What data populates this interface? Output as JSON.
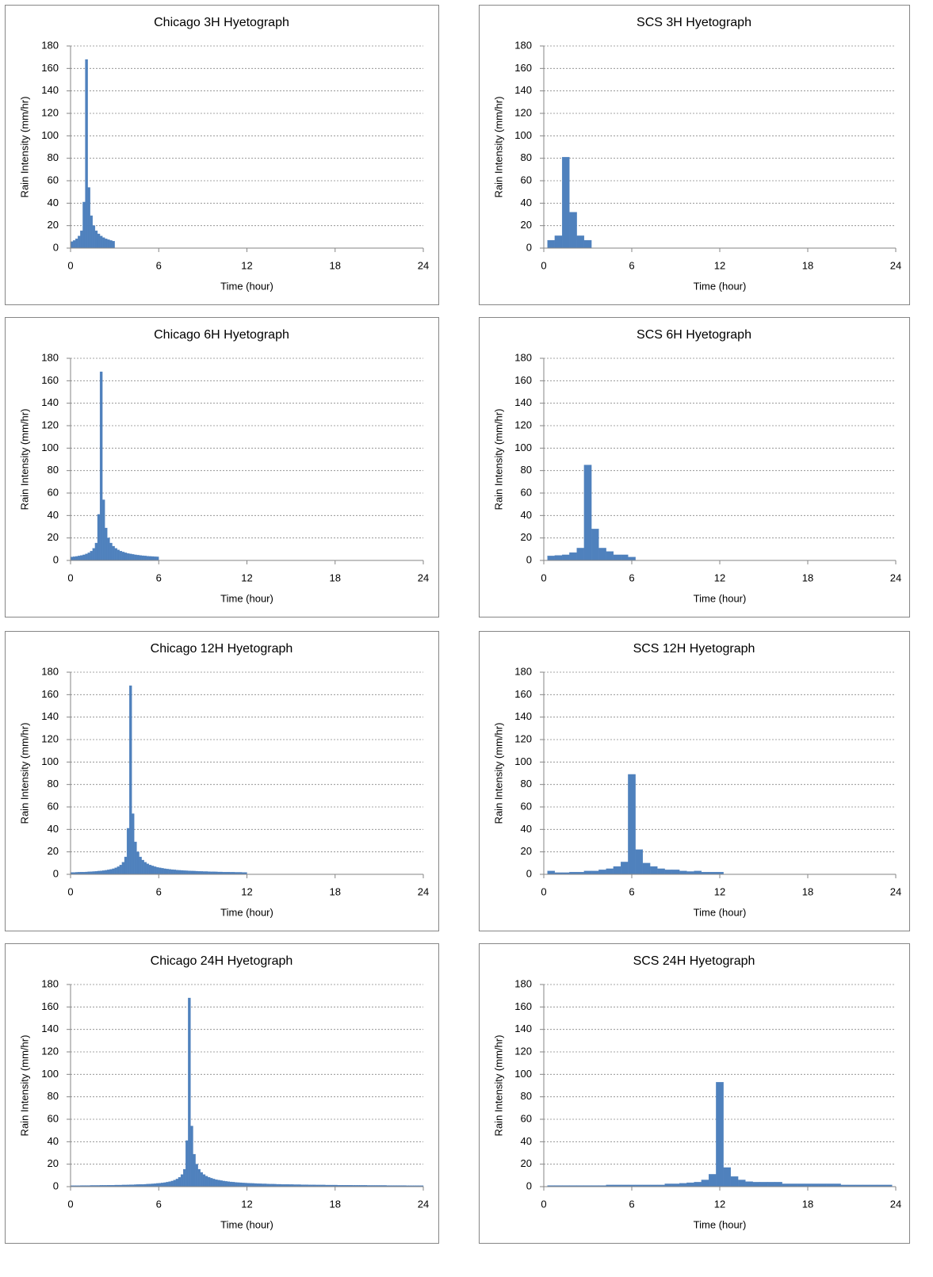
{
  "chart_data": [
    {
      "type": "histogram",
      "title": "Chicago 3H Hyetograph",
      "xlabel": "Time (hour)",
      "ylabel": "Rain Intensity (mm/hr)",
      "color": "#4f81bd",
      "grid": true,
      "xlim": [
        0,
        24
      ],
      "xticks": [
        0,
        6,
        12,
        18,
        24
      ],
      "ylim": [
        0,
        180
      ],
      "yticks": [
        0,
        20,
        40,
        60,
        80,
        100,
        120,
        140,
        160,
        180
      ],
      "bins": [
        0,
        0.167,
        0.333,
        0.5,
        0.667,
        0.833,
        1,
        1.167,
        1.333,
        1.5,
        1.667,
        1.833,
        2,
        2.167,
        2.333,
        2.5,
        2.667,
        2.833,
        3
      ],
      "values": [
        5.8,
        6.8,
        8.3,
        10.8,
        15.5,
        41,
        168,
        54,
        28.9,
        20.1,
        15.5,
        12.7,
        10.8,
        9.4,
        8.3,
        7.5,
        6.8,
        6.2
      ]
    },
    {
      "type": "histogram",
      "title": "SCS 3H Hyetograph",
      "xlabel": "Time (hour)",
      "ylabel": "Rain Intensity (mm/hr)",
      "color": "#4f81bd",
      "grid": true,
      "xlim": [
        0,
        24
      ],
      "xticks": [
        0,
        6,
        12,
        18,
        24
      ],
      "ylim": [
        0,
        180
      ],
      "yticks": [
        0,
        20,
        40,
        60,
        80,
        100,
        120,
        140,
        160,
        180
      ],
      "bins": [
        0.25,
        0.75,
        1.25,
        1.75,
        2.25,
        2.75,
        3.25
      ],
      "values": [
        7,
        11,
        81,
        32,
        11,
        7
      ]
    },
    {
      "type": "histogram",
      "title": "Chicago 6H Hyetograph",
      "xlabel": "Time (hour)",
      "ylabel": "Rain Intensity (mm/hr)",
      "color": "#4f81bd",
      "grid": true,
      "xlim": [
        0,
        24
      ],
      "xticks": [
        0,
        6,
        12,
        18,
        24
      ],
      "ylim": [
        0,
        180
      ],
      "yticks": [
        0,
        20,
        40,
        60,
        80,
        100,
        120,
        140,
        160,
        180
      ],
      "bins": [
        0,
        0.167,
        0.333,
        0.5,
        0.667,
        0.833,
        1,
        1.167,
        1.333,
        1.5,
        1.667,
        1.833,
        2,
        2.167,
        2.333,
        2.5,
        2.667,
        2.833,
        3,
        3.167,
        3.333,
        3.5,
        3.667,
        3.833,
        4,
        4.167,
        4.333,
        4.5,
        4.667,
        4.833,
        5,
        5.167,
        5.333,
        5.5,
        5.667,
        5.833,
        6
      ],
      "values": [
        3.1,
        3.3,
        3.6,
        4.0,
        4.5,
        5.0,
        5.8,
        6.8,
        8.3,
        10.8,
        15.5,
        41,
        168,
        54,
        28.9,
        20.1,
        15.5,
        12.7,
        10.8,
        9.4,
        8.3,
        7.5,
        6.8,
        6.2,
        5.8,
        5.4,
        5.0,
        4.7,
        4.5,
        4.2,
        4.0,
        3.8,
        3.6,
        3.5,
        3.3,
        3.2
      ]
    },
    {
      "type": "histogram",
      "title": "SCS 6H Hyetograph",
      "xlabel": "Time (hour)",
      "ylabel": "Rain Intensity (mm/hr)",
      "color": "#4f81bd",
      "grid": true,
      "xlim": [
        0,
        24
      ],
      "xticks": [
        0,
        6,
        12,
        18,
        24
      ],
      "ylim": [
        0,
        180
      ],
      "yticks": [
        0,
        20,
        40,
        60,
        80,
        100,
        120,
        140,
        160,
        180
      ],
      "bins": [
        0.25,
        0.75,
        1.25,
        1.75,
        2.25,
        2.75,
        3.25,
        3.75,
        4.25,
        4.75,
        5.25,
        5.75,
        6.25
      ],
      "values": [
        4,
        4.5,
        5,
        7,
        11,
        85,
        28,
        11,
        8,
        5,
        5,
        3
      ]
    },
    {
      "type": "histogram",
      "title": "Chicago 12H Hyetograph",
      "xlabel": "Time (hour)",
      "ylabel": "Rain Intensity (mm/hr)",
      "color": "#4f81bd",
      "grid": true,
      "xlim": [
        0,
        24
      ],
      "xticks": [
        0,
        6,
        12,
        18,
        24
      ],
      "ylim": [
        0,
        180
      ],
      "yticks": [
        0,
        20,
        40,
        60,
        80,
        100,
        120,
        140,
        160,
        180
      ],
      "bins": [
        0,
        0.167,
        0.333,
        0.5,
        0.667,
        0.833,
        1,
        1.167,
        1.333,
        1.5,
        1.667,
        1.833,
        2,
        2.167,
        2.333,
        2.5,
        2.667,
        2.833,
        3,
        3.167,
        3.333,
        3.5,
        3.667,
        3.833,
        4,
        4.167,
        4.333,
        4.5,
        4.667,
        4.833,
        5,
        5.167,
        5.333,
        5.5,
        5.667,
        5.833,
        6,
        6.167,
        6.333,
        6.5,
        6.667,
        6.833,
        7,
        7.167,
        7.333,
        7.5,
        7.667,
        7.833,
        8,
        8.167,
        8.333,
        8.5,
        8.667,
        8.833,
        9,
        9.167,
        9.333,
        9.5,
        9.667,
        9.833,
        10,
        10.167,
        10.333,
        10.5,
        10.667,
        10.833,
        11,
        11.167,
        11.333,
        11.5,
        11.667,
        11.833,
        12
      ],
      "values": [
        1.7,
        1.7,
        1.8,
        1.9,
        2.0,
        2.0,
        2.1,
        2.3,
        2.4,
        2.5,
        2.7,
        2.9,
        3.1,
        3.3,
        3.6,
        4.0,
        4.5,
        5.0,
        5.8,
        6.8,
        8.3,
        10.8,
        15.5,
        41,
        168,
        54,
        28.9,
        20.1,
        15.5,
        12.7,
        10.8,
        9.4,
        8.3,
        7.5,
        6.8,
        6.2,
        5.8,
        5.4,
        5.0,
        4.7,
        4.5,
        4.2,
        4.0,
        3.8,
        3.6,
        3.5,
        3.3,
        3.2,
        3.1,
        3.0,
        2.9,
        2.8,
        2.7,
        2.6,
        2.5,
        2.5,
        2.4,
        2.3,
        2.3,
        2.2,
        2.1,
        2.1,
        2.0,
        2.0,
        2.0,
        1.9,
        1.9,
        1.8,
        1.8,
        1.8,
        1.7,
        1.7
      ]
    },
    {
      "type": "histogram",
      "title": "SCS 12H Hyetograph",
      "xlabel": "Time (hour)",
      "ylabel": "Rain Intensity (mm/hr)",
      "color": "#4f81bd",
      "grid": true,
      "xlim": [
        0,
        24
      ],
      "xticks": [
        0,
        6,
        12,
        18,
        24
      ],
      "ylim": [
        0,
        180
      ],
      "yticks": [
        0,
        20,
        40,
        60,
        80,
        100,
        120,
        140,
        160,
        180
      ],
      "bins": [
        0.25,
        0.75,
        1.25,
        1.75,
        2.25,
        2.75,
        3.25,
        3.75,
        4.25,
        4.75,
        5.25,
        5.75,
        6.25,
        6.75,
        7.25,
        7.75,
        8.25,
        8.75,
        9.25,
        9.75,
        10.25,
        10.75,
        11.25,
        11.75,
        12.25
      ],
      "values": [
        3,
        1.5,
        1.5,
        2,
        2,
        3,
        3,
        4,
        5,
        7,
        11,
        89,
        22,
        10,
        7,
        5,
        4,
        4,
        3,
        2.5,
        3,
        2,
        2,
        2
      ]
    },
    {
      "type": "histogram",
      "title": "Chicago 24H Hyetograph",
      "xlabel": "Time (hour)",
      "ylabel": "Rain Intensity (mm/hr)",
      "color": "#4f81bd",
      "grid": true,
      "xlim": [
        0,
        24
      ],
      "xticks": [
        0,
        6,
        12,
        18,
        24
      ],
      "ylim": [
        0,
        180
      ],
      "yticks": [
        0,
        20,
        40,
        60,
        80,
        100,
        120,
        140,
        160,
        180
      ],
      "bins": [
        0,
        0.167,
        0.333,
        0.5,
        0.667,
        0.833,
        1,
        1.167,
        1.333,
        1.5,
        1.667,
        1.833,
        2,
        2.167,
        2.333,
        2.5,
        2.667,
        2.833,
        3,
        3.167,
        3.333,
        3.5,
        3.667,
        3.833,
        4,
        4.167,
        4.333,
        4.5,
        4.667,
        4.833,
        5,
        5.167,
        5.333,
        5.5,
        5.667,
        5.833,
        6,
        6.167,
        6.333,
        6.5,
        6.667,
        6.833,
        7,
        7.167,
        7.333,
        7.5,
        7.667,
        7.833,
        8,
        8.167,
        8.333,
        8.5,
        8.667,
        8.833,
        9,
        9.167,
        9.333,
        9.5,
        9.667,
        9.833,
        10,
        10.167,
        10.333,
        10.5,
        10.667,
        10.833,
        11,
        11.167,
        11.333,
        11.5,
        11.667,
        11.833,
        12,
        12.167,
        12.333,
        12.5,
        12.667,
        12.833,
        13,
        13.167,
        13.333,
        13.5,
        13.667,
        13.833,
        14,
        14.167,
        14.333,
        14.5,
        14.667,
        14.833,
        15,
        15.167,
        15.333,
        15.5,
        15.667,
        15.833,
        16,
        16.167,
        16.333,
        16.5,
        16.667,
        16.833,
        17,
        17.167,
        17.333,
        17.5,
        17.667,
        17.833,
        18,
        18.167,
        18.333,
        18.5,
        18.667,
        18.833,
        19,
        19.167,
        19.333,
        19.5,
        19.667,
        19.833,
        20,
        20.167,
        20.333,
        20.5,
        20.667,
        20.833,
        21,
        21.167,
        21.333,
        21.5,
        21.667,
        21.833,
        22,
        22.167,
        22.333,
        22.5,
        22.667,
        22.833,
        23,
        23.167,
        23.333,
        23.5,
        23.667,
        23.833,
        24
      ],
      "values": [
        0.9,
        0.9,
        0.9,
        0.9,
        1.0,
        1.0,
        1.0,
        1.0,
        1.1,
        1.1,
        1.1,
        1.1,
        1.2,
        1.2,
        1.2,
        1.3,
        1.3,
        1.3,
        1.4,
        1.4,
        1.4,
        1.5,
        1.5,
        1.6,
        1.7,
        1.7,
        1.8,
        1.9,
        2.0,
        2.0,
        2.1,
        2.3,
        2.4,
        2.5,
        2.7,
        2.9,
        3.1,
        3.3,
        3.6,
        4.0,
        4.5,
        5.0,
        5.8,
        6.8,
        8.3,
        10.8,
        15.5,
        41,
        168,
        54,
        28.9,
        20.1,
        15.5,
        12.7,
        10.8,
        9.4,
        8.3,
        7.5,
        6.8,
        6.2,
        5.8,
        5.4,
        5.0,
        4.7,
        4.5,
        4.2,
        4.0,
        3.8,
        3.6,
        3.5,
        3.3,
        3.2,
        3.1,
        3.0,
        2.9,
        2.8,
        2.7,
        2.6,
        2.5,
        2.5,
        2.4,
        2.3,
        2.3,
        2.2,
        2.1,
        2.1,
        2.0,
        2.0,
        2.0,
        1.9,
        1.9,
        1.8,
        1.8,
        1.8,
        1.7,
        1.7,
        1.7,
        1.6,
        1.6,
        1.6,
        1.5,
        1.5,
        1.5,
        1.5,
        1.4,
        1.4,
        1.4,
        1.4,
        1.4,
        1.3,
        1.3,
        1.3,
        1.3,
        1.3,
        1.3,
        1.2,
        1.2,
        1.2,
        1.2,
        1.2,
        1.2,
        1.1,
        1.1,
        1.1,
        1.1,
        1.1,
        1.1,
        1.1,
        1.1,
        1.0,
        1.0,
        1.0,
        1.0,
        1.0,
        1.0,
        1.0,
        1.0,
        0.9,
        0.9,
        0.9,
        0.9,
        0.9,
        0.9,
        0.9
      ]
    },
    {
      "type": "histogram",
      "title": "SCS 24H Hyetograph",
      "xlabel": "Time (hour)",
      "ylabel": "Rain Intensity (mm/hr)",
      "color": "#4f81bd",
      "grid": true,
      "xlim": [
        0,
        24
      ],
      "xticks": [
        0,
        6,
        12,
        18,
        24
      ],
      "ylim": [
        0,
        180
      ],
      "yticks": [
        0,
        20,
        40,
        60,
        80,
        100,
        120,
        140,
        160,
        180
      ],
      "bins": [
        0.25,
        0.75,
        1.25,
        1.75,
        2.25,
        2.75,
        3.25,
        3.75,
        4.25,
        4.75,
        5.25,
        5.75,
        6.25,
        6.75,
        7.25,
        7.75,
        8.25,
        8.75,
        9.25,
        9.75,
        10.25,
        10.75,
        11.25,
        11.75,
        12.25,
        12.75,
        13.25,
        13.75,
        14.25,
        14.75,
        15.25,
        15.75,
        16.25,
        16.75,
        17.25,
        17.75,
        18.25,
        18.75,
        19.25,
        19.75,
        20.25,
        20.75,
        21.25,
        21.75,
        22.25,
        22.75,
        23.25,
        23.75
      ],
      "values": [
        1,
        1,
        1,
        1,
        1,
        1,
        1,
        1,
        1.5,
        1.5,
        1.5,
        1.5,
        1.5,
        1.5,
        1.5,
        1.5,
        2.5,
        2.5,
        3,
        3.5,
        4,
        6,
        11,
        93,
        17,
        9,
        6,
        4.5,
        4,
        4,
        4,
        4,
        2.5,
        2.5,
        2.5,
        2.5,
        2.5,
        2.5,
        2.5,
        2.5,
        1.5,
        1.5,
        1.5,
        1.5,
        1.5,
        1.5,
        1.5
      ]
    }
  ]
}
